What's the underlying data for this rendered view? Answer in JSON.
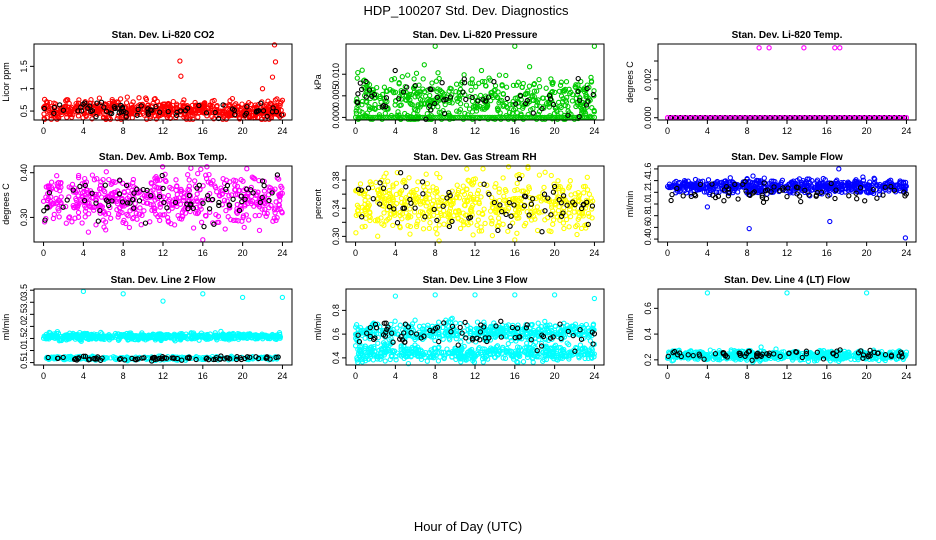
{
  "figure": {
    "title": "HDP_100207  Std. Dev. Diagnostics",
    "xlabel": "Hour of Day (UTC)"
  },
  "chart_data": [
    {
      "type": "scatter",
      "title": "Stan. Dev. Li-820 CO2",
      "ylabel": "Licor ppm",
      "xlim": [
        -0.96,
        24.96
      ],
      "ylim": [
        0.3,
        2.0
      ],
      "xticks": [
        0,
        4,
        8,
        12,
        16,
        20,
        24
      ],
      "yticks": [
        0.5,
        1.0,
        1.5
      ],
      "ytick_labels": [
        "0.5",
        "1",
        "1.5"
      ],
      "colors": {
        "main": "#ff0000",
        "overlay": "#000000"
      },
      "main": {
        "n": 620,
        "mean": 0.52,
        "spread": 0.11
      },
      "overlay": {
        "n": 70,
        "mean": 0.52,
        "spread": 0.08
      },
      "outliers": [
        [
          13.7,
          1.62
        ],
        [
          13.8,
          1.28
        ],
        [
          22.0,
          1.0
        ],
        [
          23.0,
          1.26
        ],
        [
          23.3,
          1.6
        ],
        [
          23.2,
          1.98
        ],
        [
          24.0,
          0.74
        ],
        [
          24.1,
          0.42
        ],
        [
          0.1,
          0.76
        ],
        [
          14.8,
          0.38
        ]
      ]
    },
    {
      "type": "scatter",
      "title": "Stan. Dev. Li-820 Pressure",
      "ylabel": "kPa",
      "xlim": [
        -0.96,
        24.96
      ],
      "ylim": [
        -0.0006,
        0.017
      ],
      "xticks": [
        0,
        4,
        8,
        12,
        16,
        20,
        24
      ],
      "yticks": [
        0.0,
        0.005,
        0.01
      ],
      "ytick_labels": [
        "0.000",
        "0.005",
        "0.010"
      ],
      "colors": {
        "main": "#00cc00",
        "overlay": "#000000"
      },
      "main": {
        "n": 520,
        "mean": 0.004,
        "spread": 0.0028
      },
      "overlay": {
        "n": 60,
        "mean": 0.0045,
        "spread": 0.0025
      },
      "baseline": 0.0,
      "outliers": [
        [
          8.0,
          0.0165
        ],
        [
          16.0,
          0.0165
        ],
        [
          24.0,
          0.0165
        ]
      ]
    },
    {
      "type": "scatter",
      "title": "Stan. Dev. Li-820 Temp.",
      "ylabel": "degrees C",
      "xlim": [
        -0.96,
        24.96
      ],
      "ylim": [
        -0.00012,
        0.0039
      ],
      "xticks": [
        0,
        4,
        8,
        12,
        16,
        20,
        24
      ],
      "yticks": [
        0.0,
        0.001,
        0.002,
        0.003
      ],
      "ytick_labels": [
        "0.000",
        "",
        "0.002",
        ""
      ],
      "colors": {
        "main": "#ff00ff",
        "overlay": "#000000"
      },
      "baseline": 0.0,
      "outliers": [
        [
          9.2,
          0.0037
        ],
        [
          10.2,
          0.0037
        ],
        [
          13.7,
          0.0037
        ],
        [
          16.8,
          0.0037
        ],
        [
          17.3,
          0.0037
        ]
      ]
    },
    {
      "type": "scatter",
      "title": "Stan. Dev. Amb. Box Temp.",
      "ylabel": "degrees C",
      "xlim": [
        -0.96,
        24.96
      ],
      "ylim": [
        0.245,
        0.415
      ],
      "xticks": [
        0,
        4,
        8,
        12,
        16,
        20,
        24
      ],
      "yticks": [
        0.3,
        0.4
      ],
      "ytick_labels": [
        "0.30",
        "0.40"
      ],
      "colors": {
        "main": "#ff00ff",
        "overlay": "#000000"
      },
      "main": {
        "n": 560,
        "mean": 0.34,
        "spread": 0.028
      },
      "overlay": {
        "n": 80,
        "mean": 0.34,
        "spread": 0.024
      },
      "outliers": [
        [
          16.0,
          0.25
        ],
        [
          14.8,
          0.41
        ]
      ]
    },
    {
      "type": "scatter",
      "title": "Stan. Dev. Gas Stream RH",
      "ylabel": "percent",
      "xlim": [
        -0.96,
        24.96
      ],
      "ylim": [
        0.292,
        0.4
      ],
      "xticks": [
        0,
        4,
        8,
        12,
        16,
        20,
        24
      ],
      "yticks": [
        0.3,
        0.32,
        0.34,
        0.36,
        0.38
      ],
      "ytick_labels": [
        "0.30",
        "",
        "0.34",
        "",
        "0.38"
      ],
      "colors": {
        "main": "#ffff00",
        "overlay": "#000000"
      },
      "main": {
        "n": 560,
        "mean": 0.346,
        "spread": 0.02
      },
      "overlay": {
        "n": 70,
        "mean": 0.346,
        "spread": 0.018
      },
      "outliers": [
        [
          16.0,
          0.295
        ],
        [
          12.8,
          0.396
        ]
      ]
    },
    {
      "type": "scatter",
      "title": "Stan. Dev. Sample Flow",
      "ylabel": "ml/min",
      "xlim": [
        -0.96,
        24.96
      ],
      "ylim": [
        0.35,
        1.65
      ],
      "xticks": [
        0,
        4,
        8,
        12,
        16,
        20,
        24
      ],
      "yticks": [
        0.4,
        0.6,
        0.8,
        1.0,
        1.2,
        1.4,
        1.6
      ],
      "ytick_labels": [
        "0.4",
        "0.6",
        "0.8",
        "1.0",
        "1.2",
        "1.4",
        "1.6"
      ],
      "colors": {
        "main": "#0000ff",
        "overlay": "#000000"
      },
      "main": {
        "n": 560,
        "mean": 1.3,
        "spread": 0.06
      },
      "overlay": {
        "n": 70,
        "mean": 1.2,
        "spread": 0.08
      },
      "outliers": [
        [
          8.2,
          0.58
        ],
        [
          16.3,
          0.7
        ],
        [
          23.9,
          0.42
        ],
        [
          4.0,
          0.95
        ],
        [
          17.2,
          1.6
        ]
      ]
    },
    {
      "type": "scatter",
      "title": "Stan. Dev. Line 2 Flow",
      "ylabel": "ml/min",
      "xlim": [
        -0.96,
        24.96
      ],
      "ylim": [
        0.4,
        3.55
      ],
      "xticks": [
        0,
        4,
        8,
        12,
        16,
        20,
        24
      ],
      "yticks": [
        0.5,
        1.0,
        1.5,
        2.0,
        2.5,
        3.0,
        3.5
      ],
      "ytick_labels": [
        "0.5",
        "1.0",
        "1.5",
        "2.0",
        "2.5",
        "3.0",
        "3.5"
      ],
      "colors": {
        "main": "#00ffff",
        "overlay": "#000000"
      },
      "main": {
        "n": 600,
        "mean": 1.58,
        "spread": 0.07
      },
      "main2": {
        "n": 250,
        "mean": 0.68,
        "spread": 0.04
      },
      "overlay": {
        "n": 80,
        "mean": 0.68,
        "spread": 0.05
      },
      "outliers": [
        [
          4.0,
          3.45
        ],
        [
          8.0,
          3.35
        ],
        [
          12.0,
          3.05
        ],
        [
          16.0,
          3.35
        ],
        [
          20.0,
          3.2
        ],
        [
          24.0,
          3.2
        ]
      ]
    },
    {
      "type": "scatter",
      "title": "Stan. Dev. Line 3 Flow",
      "ylabel": "ml/min",
      "xlim": [
        -0.96,
        24.96
      ],
      "ylim": [
        0.34,
        0.98
      ],
      "xticks": [
        0,
        4,
        8,
        12,
        16,
        20,
        24
      ],
      "yticks": [
        0.4,
        0.6,
        0.8
      ],
      "ytick_labels": [
        "0.4",
        "0.6",
        "0.8"
      ],
      "colors": {
        "main": "#00ffff",
        "overlay": "#000000"
      },
      "main": {
        "n": 480,
        "mean": 0.62,
        "spread": 0.04
      },
      "main2": {
        "n": 480,
        "mean": 0.44,
        "spread": 0.035
      },
      "overlay": {
        "n": 80,
        "mean": 0.6,
        "spread": 0.06
      },
      "outliers": [
        [
          4.0,
          0.92
        ],
        [
          8.0,
          0.93
        ],
        [
          12.0,
          0.93
        ],
        [
          16.0,
          0.93
        ],
        [
          20.0,
          0.93
        ],
        [
          24.0,
          0.9
        ]
      ]
    },
    {
      "type": "scatter",
      "title": "Stan. Dev. Line 4 (LT) Flow",
      "ylabel": "ml/min",
      "xlim": [
        -0.96,
        24.96
      ],
      "ylim": [
        0.16,
        0.75
      ],
      "xticks": [
        0,
        4,
        8,
        12,
        16,
        20,
        24
      ],
      "yticks": [
        0.2,
        0.4,
        0.6
      ],
      "ytick_labels": [
        "0.2",
        "0.4",
        "0.6"
      ],
      "colors": {
        "main": "#00ffff",
        "overlay": "#000000"
      },
      "main": {
        "n": 620,
        "mean": 0.235,
        "spread": 0.018
      },
      "overlay": {
        "n": 70,
        "mean": 0.24,
        "spread": 0.02
      },
      "outliers": [
        [
          4.0,
          0.72
        ],
        [
          12.0,
          0.72
        ],
        [
          20.0,
          0.72
        ],
        [
          9.4,
          0.3
        ]
      ]
    }
  ]
}
